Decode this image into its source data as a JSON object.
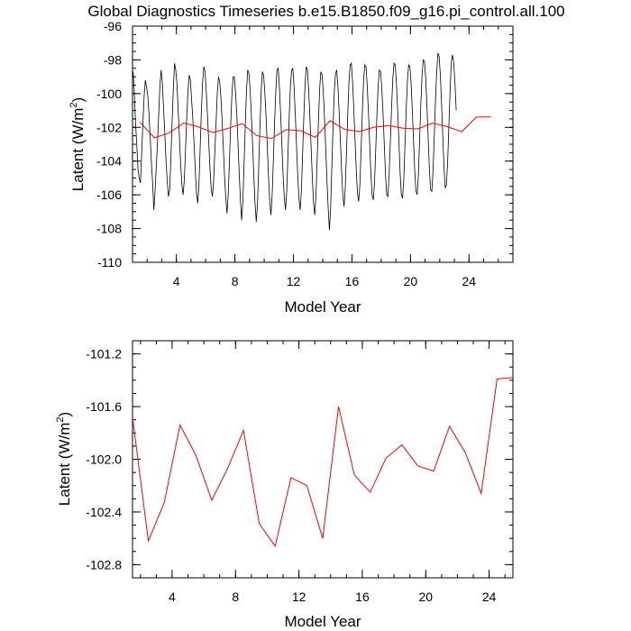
{
  "title": "Global Diagnostics Timeseries b.e15.B1850.f09_g16.pi_control.all.100",
  "colors": {
    "monthly": "#000000",
    "annual": "#ff0000"
  },
  "chart_data": [
    {
      "type": "line",
      "xlabel": "Model Year",
      "ylabel": "Latent (W/m",
      "ylabel_sup": "2",
      "ylabel_end": ")",
      "xlim": [
        1,
        27
      ],
      "ylim": [
        -110,
        -96
      ],
      "xticks": [
        4,
        8,
        12,
        16,
        20,
        24
      ],
      "yticks": [
        -110,
        -108,
        -106,
        -104,
        -102,
        -100,
        -98,
        -96
      ],
      "x_tick_labels": [
        "4",
        "8",
        "12",
        "16",
        "20",
        "24"
      ],
      "y_tick_labels": [
        "-110",
        "-108",
        "-106",
        "-104",
        "-102",
        "-100",
        "-98",
        "-96"
      ],
      "series": [
        {
          "color": "#000000",
          "x_start": 1.0417,
          "x_step": 0.08333,
          "values": [
            -98.7,
            -100.0,
            -101.8,
            -103.0,
            -104.5,
            -105.0,
            -105.3,
            -103.6,
            -101.8,
            -100.2,
            -99.2,
            -99.6,
            -100.1,
            -101.2,
            -102.6,
            -104.1,
            -105.3,
            -106.9,
            -105.8,
            -104.3,
            -102.9,
            -101.2,
            -99.5,
            -98.6,
            -99.4,
            -100.9,
            -102.4,
            -104.0,
            -105.2,
            -106.1,
            -105.7,
            -103.8,
            -101.6,
            -99.7,
            -98.2,
            -98.6,
            -99.5,
            -101.0,
            -102.6,
            -104.2,
            -105.4,
            -106.0,
            -105.1,
            -103.3,
            -101.4,
            -99.8,
            -98.9,
            -99.2,
            -100.4,
            -101.5,
            -103.0,
            -104.6,
            -105.9,
            -106.5,
            -105.4,
            -103.2,
            -101.0,
            -99.3,
            -98.4,
            -98.7,
            -99.9,
            -101.3,
            -102.8,
            -104.4,
            -105.6,
            -106.1,
            -105.2,
            -103.5,
            -101.8,
            -100.0,
            -99.0,
            -99.3,
            -100.2,
            -101.6,
            -103.2,
            -104.9,
            -106.2,
            -107.1,
            -106.0,
            -104.0,
            -101.9,
            -100.1,
            -99.0,
            -99.0,
            -99.9,
            -101.2,
            -102.9,
            -104.7,
            -106.3,
            -107.5,
            -106.4,
            -104.2,
            -101.9,
            -99.8,
            -98.6,
            -98.8,
            -99.8,
            -101.3,
            -103.0,
            -104.9,
            -106.5,
            -107.6,
            -106.6,
            -104.4,
            -102.0,
            -99.9,
            -98.7,
            -98.9,
            -99.9,
            -101.3,
            -103.0,
            -104.8,
            -106.3,
            -107.2,
            -106.1,
            -104.0,
            -101.8,
            -99.9,
            -98.6,
            -98.5,
            -99.6,
            -101.2,
            -103.0,
            -104.8,
            -106.2,
            -106.9,
            -105.8,
            -103.6,
            -101.4,
            -99.6,
            -98.6,
            -98.5,
            -99.6,
            -101.2,
            -103.0,
            -104.8,
            -106.2,
            -106.9,
            -105.8,
            -103.6,
            -101.4,
            -99.5,
            -98.4,
            -98.6,
            -99.8,
            -101.4,
            -103.2,
            -105.0,
            -106.5,
            -107.2,
            -106.0,
            -103.8,
            -101.6,
            -99.7,
            -98.7,
            -98.9,
            -99.9,
            -101.5,
            -103.3,
            -105.2,
            -106.8,
            -108.1,
            -106.8,
            -104.3,
            -101.9,
            -99.9,
            -98.8,
            -98.6,
            -99.6,
            -101.1,
            -102.8,
            -104.6,
            -106.0,
            -106.7,
            -105.6,
            -103.5,
            -101.3,
            -99.4,
            -98.3,
            -98.2,
            -99.3,
            -100.9,
            -102.7,
            -104.5,
            -105.9,
            -106.4,
            -105.4,
            -103.3,
            -101.1,
            -99.3,
            -98.3,
            -98.4,
            -99.5,
            -101.1,
            -102.9,
            -104.7,
            -106.0,
            -106.3,
            -105.3,
            -103.3,
            -101.2,
            -99.5,
            -98.6,
            -98.7,
            -99.7,
            -101.2,
            -103.0,
            -104.8,
            -106.0,
            -106.1,
            -104.8,
            -102.8,
            -100.8,
            -99.1,
            -98.2,
            -98.3,
            -99.4,
            -101.0,
            -102.8,
            -104.7,
            -106.0,
            -106.2,
            -105.1,
            -103.0,
            -100.9,
            -99.2,
            -98.3,
            -98.4,
            -99.4,
            -101.0,
            -102.8,
            -104.6,
            -105.8,
            -106.0,
            -104.8,
            -102.7,
            -100.6,
            -98.9,
            -98.0,
            -98.1,
            -99.1,
            -100.8,
            -102.6,
            -104.5,
            -105.7,
            -105.8,
            -104.6,
            -102.5,
            -100.4,
            -98.7,
            -97.6,
            -97.8,
            -98.9,
            -100.6,
            -102.5,
            -104.4,
            -105.6,
            -105.4,
            -104.0,
            -101.9,
            -99.8,
            -98.1,
            -97.7,
            -98.2,
            -99.4,
            -101.0
          ]
        },
        {
          "color": "#ff0000",
          "x": [
            1.5,
            2.5,
            3.5,
            4.5,
            5.5,
            6.5,
            7.5,
            8.5,
            9.5,
            10.5,
            11.5,
            12.5,
            13.5,
            14.5,
            15.5,
            16.5,
            17.5,
            18.5,
            19.5,
            20.5,
            21.5,
            22.5,
            23.5,
            24.5,
            25.5
          ],
          "values": [
            -101.68,
            -102.62,
            -102.33,
            -101.74,
            -101.97,
            -102.31,
            -102.07,
            -101.78,
            -102.49,
            -102.66,
            -102.14,
            -102.2,
            -102.6,
            -101.6,
            -102.12,
            -102.25,
            -101.99,
            -101.89,
            -102.05,
            -102.09,
            -101.75,
            -101.95,
            -102.26,
            -101.39,
            -101.38
          ]
        }
      ]
    },
    {
      "type": "line",
      "xlabel": "Model Year",
      "ylabel": "Latent (W/m",
      "ylabel_sup": "2",
      "ylabel_end": ")",
      "xlim": [
        1.5,
        25.5
      ],
      "ylim": [
        -102.9,
        -101.1
      ],
      "xticks": [
        4,
        8,
        12,
        16,
        20,
        24
      ],
      "yticks": [
        -102.8,
        -102.4,
        -102.0,
        -101.6,
        -101.2
      ],
      "x_tick_labels": [
        "4",
        "8",
        "12",
        "16",
        "20",
        "24"
      ],
      "y_tick_labels": [
        "-102.8",
        "-102.4",
        "-102.0",
        "-101.6",
        "-101.2"
      ],
      "series": [
        {
          "color": "#ff0000",
          "x": [
            1.5,
            2.5,
            3.5,
            4.5,
            5.5,
            6.5,
            7.5,
            8.5,
            9.5,
            10.5,
            11.5,
            12.5,
            13.5,
            14.5,
            15.5,
            16.5,
            17.5,
            18.5,
            19.5,
            20.5,
            21.5,
            22.5,
            23.5,
            24.5,
            25.5
          ],
          "values": [
            -101.68,
            -102.62,
            -102.33,
            -101.74,
            -101.97,
            -102.31,
            -102.07,
            -101.78,
            -102.49,
            -102.66,
            -102.14,
            -102.2,
            -102.6,
            -101.6,
            -102.12,
            -102.25,
            -101.99,
            -101.89,
            -102.05,
            -102.09,
            -101.75,
            -101.95,
            -102.26,
            -101.39,
            -101.38
          ]
        }
      ]
    }
  ]
}
